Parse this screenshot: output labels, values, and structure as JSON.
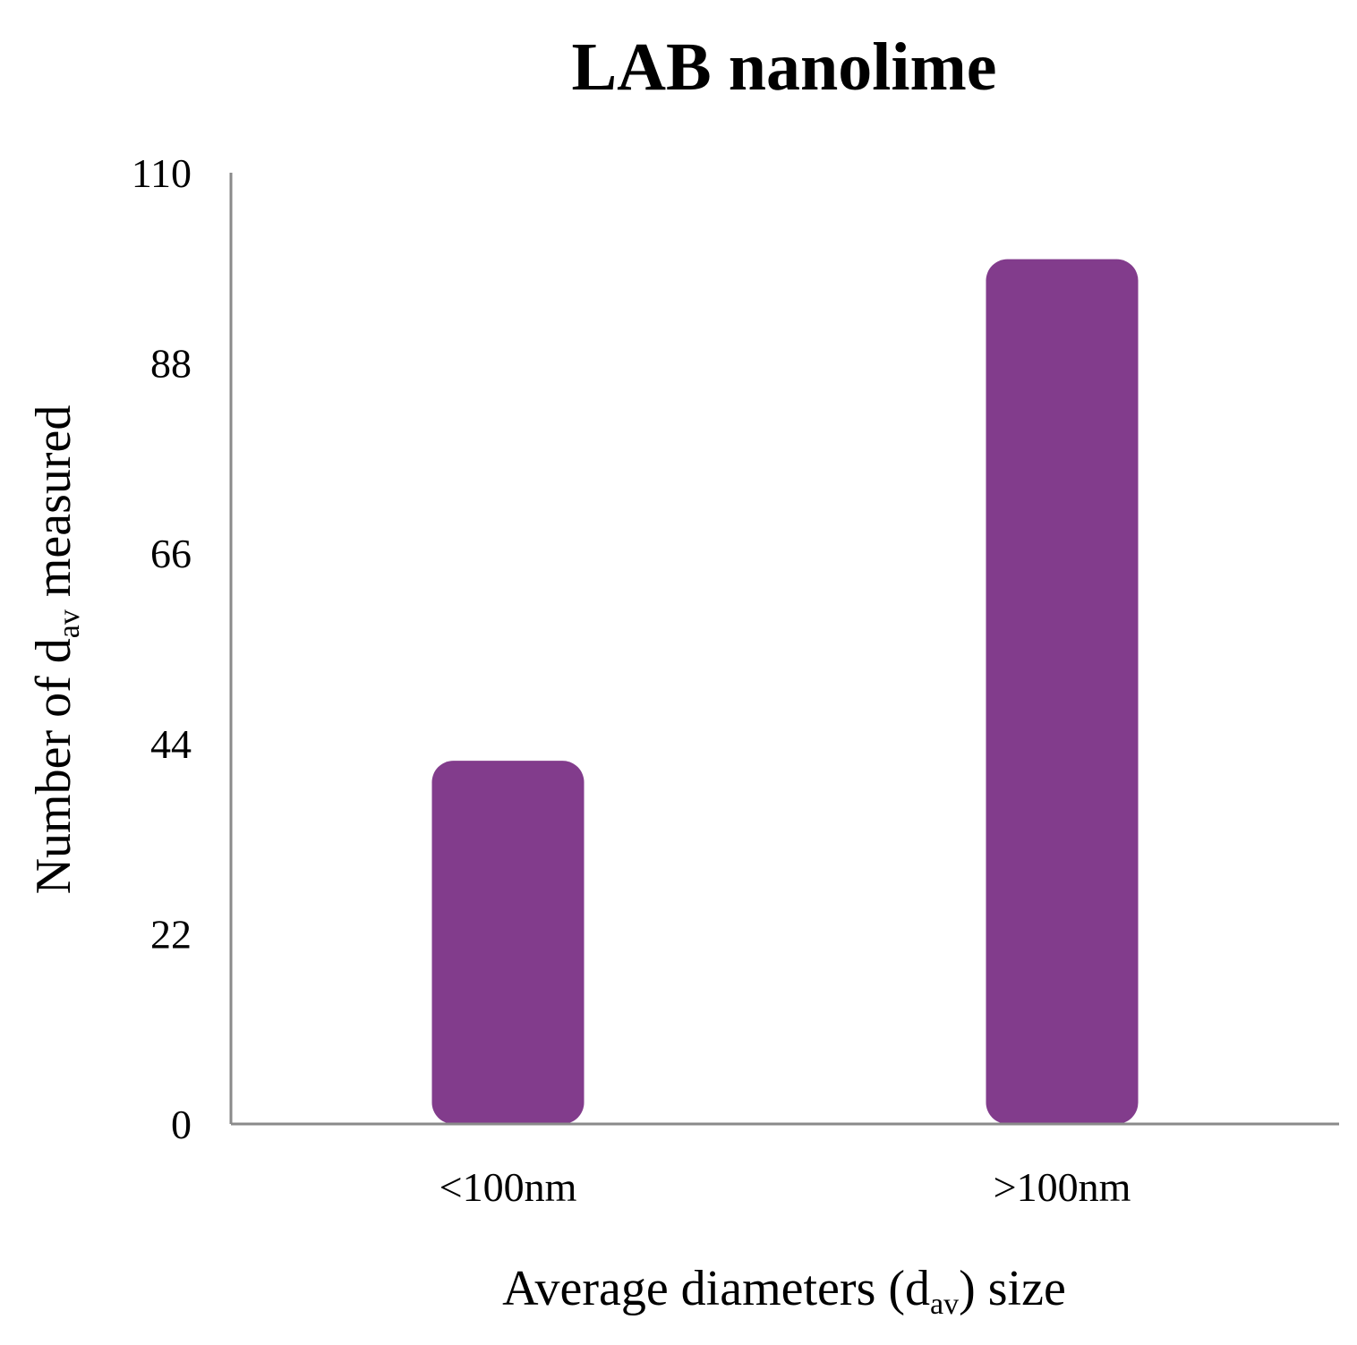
{
  "chart_data": {
    "type": "bar",
    "title": "LAB nanolime",
    "categories": [
      "<100nm",
      ">100nm"
    ],
    "values": [
      42,
      100
    ],
    "bar_color": "#823C8C",
    "axis_color": "#8A8A8A",
    "xlabel": {
      "prefix": "Average diameters (d",
      "subscript": "av",
      "suffix": ") size"
    },
    "ylabel": {
      "prefix": "Number of d",
      "subscript": "av",
      "suffix": " measured"
    },
    "yticks": [
      0,
      22,
      44,
      66,
      88,
      110
    ],
    "ylim": [
      0,
      110
    ],
    "grid": false,
    "legend": "none"
  }
}
